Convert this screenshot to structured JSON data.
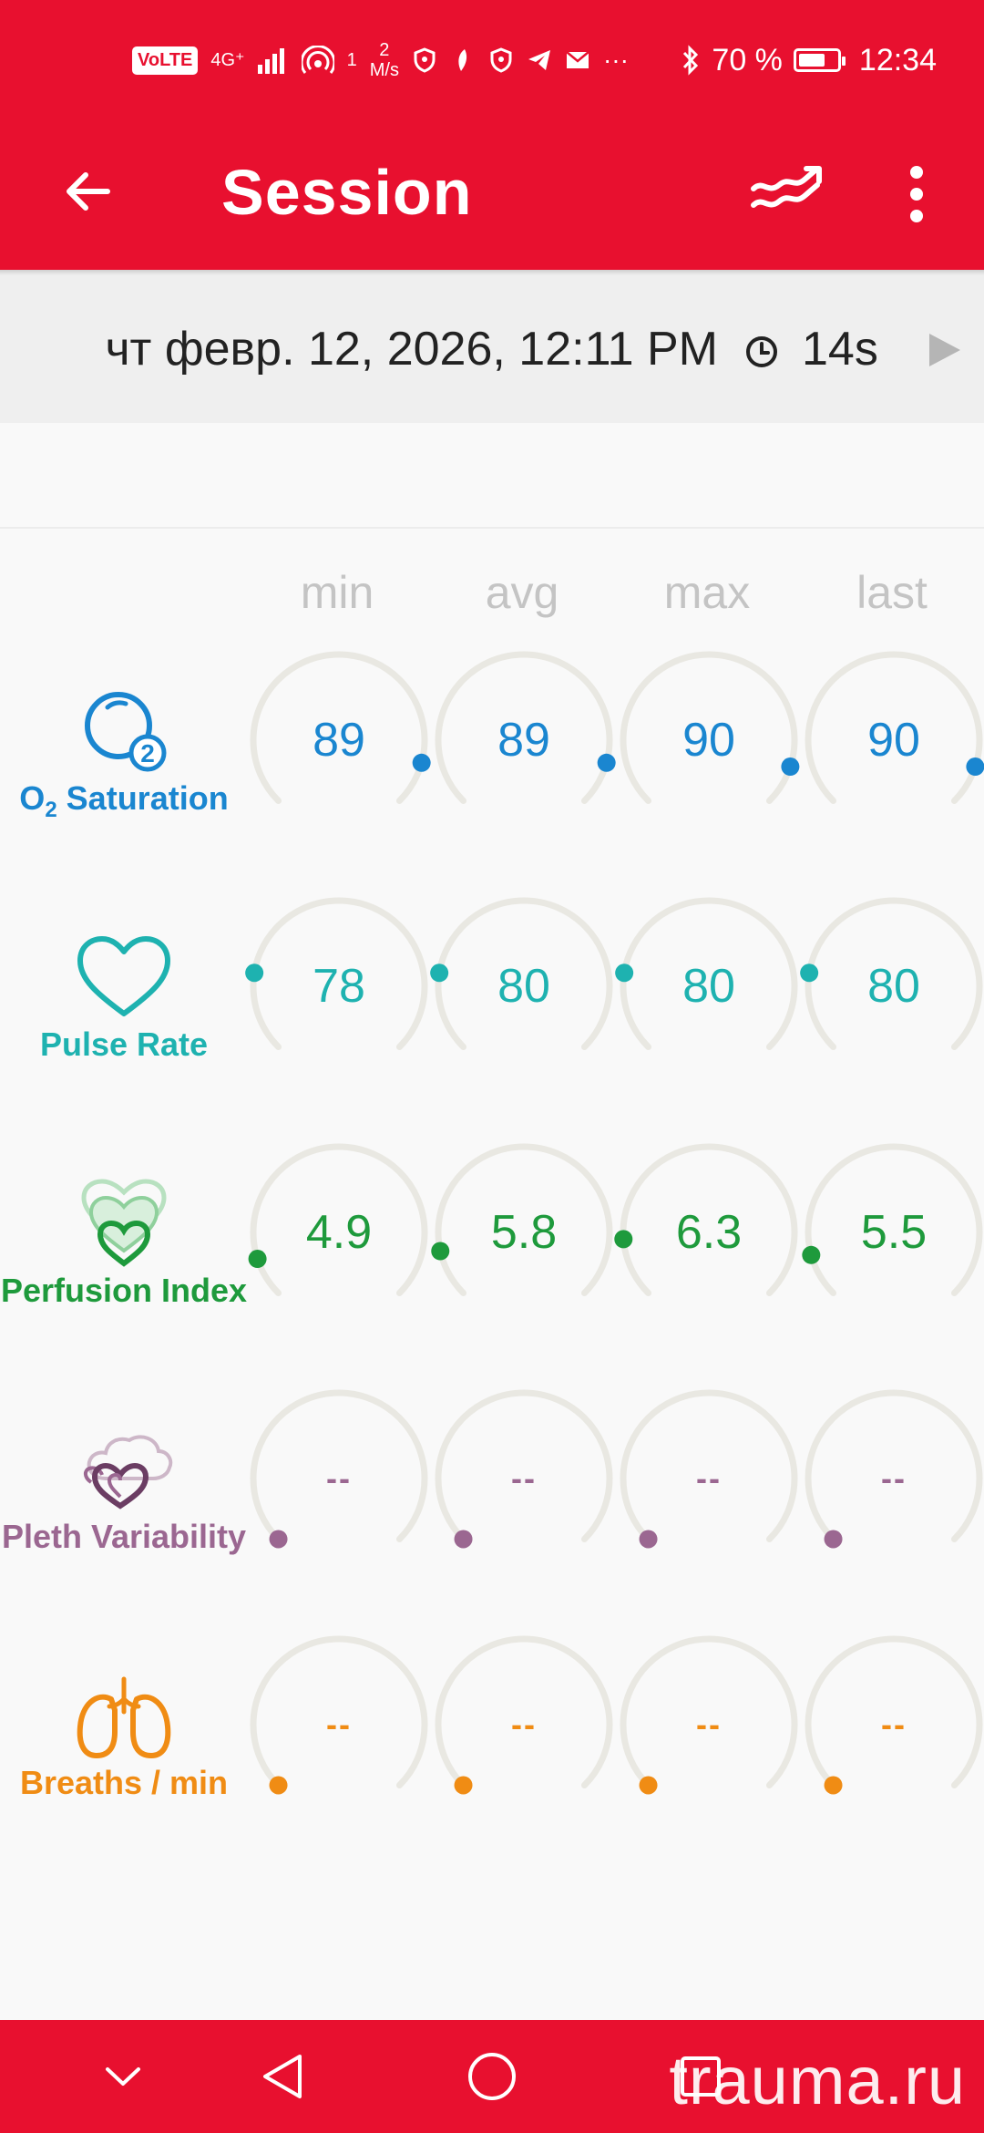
{
  "status_bar": {
    "volte": "VoLTE",
    "network": "4G⁺",
    "hotspot_count": "1",
    "speed_value": "2",
    "speed_unit": "M/s",
    "more": "···",
    "battery_text": "70 %",
    "battery_level": 0.7,
    "time": "12:34"
  },
  "app_bar": {
    "back_icon": "arrow-left-icon",
    "title": "Session",
    "trend_icon": "trend-chart-icon",
    "more_icon": "more-vert-icon"
  },
  "session": {
    "date": "чт февр. 12, 2026, 12:11 PM",
    "duration": "14s",
    "clock_icon": "clock-icon",
    "play_icon": "play-icon"
  },
  "columns": [
    "min",
    "avg",
    "max",
    "last"
  ],
  "metrics": [
    {
      "label_main": "O",
      "label_sub": "2",
      "label_rest": " Saturation",
      "icon": "o2-bubble-icon",
      "color": "#1a86d0",
      "values": [
        "89",
        "89",
        "90",
        "90"
      ],
      "levels": [
        0.89,
        0.89,
        0.9,
        0.9
      ]
    },
    {
      "label": "Pulse Rate",
      "icon": "heart-outline-icon",
      "color": "#1eb2b0",
      "values": [
        "78",
        "80",
        "80",
        "80"
      ],
      "levels": [
        0.2,
        0.2,
        0.2,
        0.2
      ]
    },
    {
      "label": "Perfusion Index",
      "icon": "layered-hearts-icon",
      "color": "#1e9a3c",
      "values": [
        "4.9",
        "5.8",
        "6.3",
        "5.5"
      ],
      "levels": [
        0.1,
        0.12,
        0.15,
        0.11
      ]
    },
    {
      "label": "Pleth Variability",
      "icon": "heart-cloud-icon",
      "color": "#9b6791",
      "values": [
        "--",
        "--",
        "--",
        "--"
      ],
      "levels": [
        0,
        0,
        0,
        0
      ]
    },
    {
      "label": "Breaths / min",
      "icon": "lungs-icon",
      "color": "#f08c14",
      "values": [
        "--",
        "--",
        "--",
        "--"
      ],
      "levels": [
        0,
        0,
        0,
        0
      ]
    }
  ],
  "gauge_track_color": "#e9e8e2",
  "nav_bar": {
    "down_icon": "chevron-down-icon",
    "back_icon": "triangle-back-icon",
    "home_icon": "circle-home-icon",
    "recents_icon": "square-recents-icon"
  },
  "watermark": "trauma.ru"
}
